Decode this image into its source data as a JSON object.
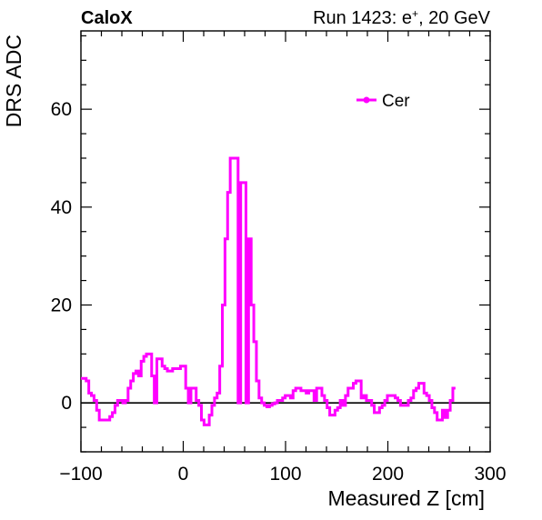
{
  "header": {
    "left_title": "CaloX",
    "right_title_prefix": "Run 1423: e",
    "right_title_sup": "+",
    "right_title_suffix": ", 20 GeV"
  },
  "chart_data": {
    "type": "line",
    "xlabel": "Measured Z [cm]",
    "ylabel": "DRS ADC",
    "xlim": [
      -100,
      300
    ],
    "ylim": [
      -10,
      76
    ],
    "xticks": [
      -100,
      0,
      100,
      200,
      300
    ],
    "xtick_labels": [
      "−100",
      "0",
      "100",
      "200",
      "300"
    ],
    "yticks": [
      0,
      20,
      40,
      60
    ],
    "ytick_labels": [
      "0",
      "20",
      "40",
      "60"
    ],
    "grid": false,
    "legend_position": "top-right",
    "zero_line": true,
    "series": [
      {
        "name": "Cer",
        "color": "#ff00ff",
        "step": true,
        "bin_width": 2.56,
        "x_start": -100,
        "values": [
          5,
          5,
          4.5,
          2,
          1.5,
          0.5,
          -1.5,
          -3.5,
          -3.5,
          -3.5,
          -3.5,
          -2.8,
          -2,
          -0.5,
          0.5,
          0.5,
          0,
          0.5,
          3,
          4.5,
          6,
          6.5,
          5.5,
          8.5,
          9.5,
          10,
          10,
          5.5,
          0,
          9,
          9,
          7.5,
          7,
          6.5,
          6.5,
          7,
          7,
          7,
          7.5,
          7.5,
          3,
          0,
          3,
          3,
          0.5,
          -0.5,
          -3.5,
          -4.5,
          -4.5,
          -2.5,
          -0.5,
          1,
          2,
          7.5,
          20,
          33.5,
          43,
          50,
          50,
          50,
          0,
          45,
          45,
          0,
          33.5,
          20,
          12.5,
          4.5,
          1,
          0,
          -0.5,
          -0.8,
          -0.5,
          -0.2,
          0,
          0.5,
          0.5,
          1,
          1.5,
          1.5,
          1,
          2.5,
          3,
          3,
          2.5,
          2.5,
          2,
          2.5,
          2.5,
          0.5,
          3,
          3,
          1.5,
          0.5,
          -1,
          -2.5,
          -2.5,
          -1.5,
          -1,
          0.5,
          -0.5,
          1.5,
          3,
          3,
          4,
          4.5,
          4.5,
          1,
          1.5,
          0.5,
          0.5,
          -0.5,
          -2,
          -2,
          -1,
          -0.5,
          0.5,
          1.5,
          1.5,
          1.5,
          1,
          0.5,
          -0.5,
          -0.5,
          -0.5,
          0.5,
          1,
          2.5,
          3,
          4,
          4,
          2,
          1.5,
          0.5,
          -1,
          -2,
          -3.5,
          -3.5,
          -1.5,
          -3,
          -1.5,
          0.5,
          3
        ]
      }
    ]
  }
}
